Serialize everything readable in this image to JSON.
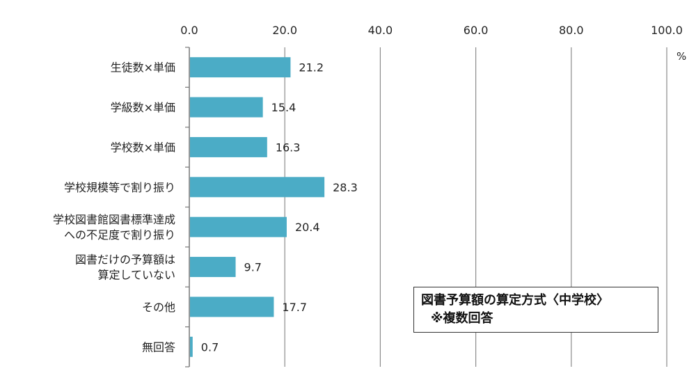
{
  "chart_data": {
    "type": "bar",
    "orientation": "horizontal",
    "title": "図書予算額の算定方式〈中学校〉",
    "subtitle": "※複数回答",
    "unit": "%",
    "xlim": [
      0,
      100
    ],
    "ticks": [
      "0.0",
      "20.0",
      "40.0",
      "60.0",
      "80.0",
      "100.0"
    ],
    "tick_values": [
      0,
      20,
      40,
      60,
      80,
      100
    ],
    "grid": true,
    "bar_color": "#4bacc6",
    "categories": [
      [
        "生徒数×単価"
      ],
      [
        "学級数×単価"
      ],
      [
        "学校数×単価"
      ],
      [
        "学校規模等で割り振り"
      ],
      [
        "学校図書館図書標準達成",
        "への不足度で割り振り"
      ],
      [
        "図書だけの予算額は",
        "算定していない"
      ],
      [
        "その他"
      ],
      [
        "無回答"
      ]
    ],
    "values": [
      21.2,
      15.4,
      16.3,
      28.3,
      20.4,
      9.7,
      17.7,
      0.7
    ],
    "value_labels": [
      "21.2",
      "15.4",
      "16.3",
      "28.3",
      "20.4",
      "9.7",
      "17.7",
      "0.7"
    ]
  }
}
